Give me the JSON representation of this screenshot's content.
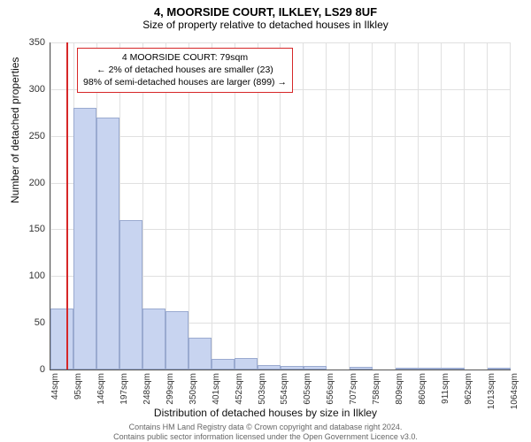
{
  "title": "4, MOORSIDE COURT, ILKLEY, LS29 8UF",
  "subtitle": "Size of property relative to detached houses in Ilkley",
  "ylabel": "Number of detached properties",
  "xlabel": "Distribution of detached houses by size in Ilkley",
  "attribution_line1": "Contains HM Land Registry data © Crown copyright and database right 2024.",
  "attribution_line2": "Contains public sector information licensed under the Open Government Licence v3.0.",
  "annotation": {
    "line1": "4 MOORSIDE COURT: 79sqm",
    "line2": "← 2% of detached houses are smaller (23)",
    "line3": "98% of semi-detached houses are larger (899) →"
  },
  "chart": {
    "type": "histogram",
    "ylim": [
      0,
      350
    ],
    "ytick_step": 50,
    "xlim": [
      44,
      1066
    ],
    "xtick_step": 51,
    "xtick_suffix": "sqm",
    "bar_fill": "#c8d4f0",
    "bar_stroke": "#9aaad0",
    "grid_color": "#e0e0e0",
    "marker_color": "#d62728",
    "marker_x": 79,
    "background": "#ffffff",
    "bar_values": [
      65,
      280,
      270,
      160,
      65,
      62,
      34,
      11,
      12,
      5,
      4,
      4,
      0,
      3,
      0,
      2,
      1,
      1,
      0,
      2
    ],
    "title_fontsize": 13,
    "subtitle_fontsize": 12,
    "label_fontsize": 12,
    "tick_fontsize": 11,
    "annotation_fontsize": 10.5
  }
}
